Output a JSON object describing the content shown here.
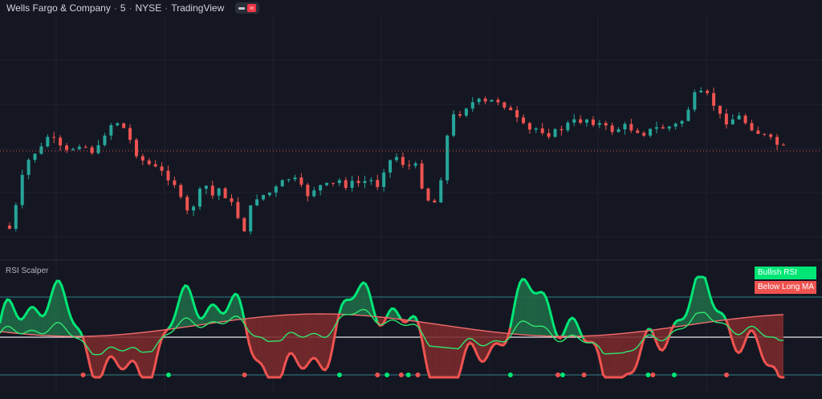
{
  "header": {
    "symbol": "Wells Fargo & Company",
    "interval": "5",
    "exchange": "NYSE",
    "source": "TradingView",
    "sep": "·"
  },
  "indicator": {
    "name": "RSI Scalper",
    "legend": [
      {
        "label": "Bullish RSI",
        "color": "#00e676"
      },
      {
        "label": "Below Long MA",
        "color": "#ef5350"
      }
    ]
  },
  "colors": {
    "background": "#141722",
    "grid": "#1e222d",
    "up": "#26a69a",
    "down": "#ef5350",
    "rsi_bull": "#00e676",
    "rsi_bear": "#ef5350",
    "fill_bull": "#1f6b48",
    "fill_bear": "#7a2a2c",
    "ma_line": "#2ee66f",
    "long_ma": "#f06b6b",
    "midline": "#e8e8e8",
    "bands": "#2f7f86"
  },
  "chart_data": [
    {
      "type": "candlestick",
      "title": "Wells Fargo & Company · 5 · NYSE",
      "reference_line": "last close (dotted)",
      "grid": true,
      "x": "bar index 0–120",
      "close_path": [
        [
          0,
          281
        ],
        [
          3,
          285
        ],
        [
          6,
          258
        ],
        [
          9,
          222
        ],
        [
          12,
          200
        ],
        [
          15,
          190
        ],
        [
          18,
          185
        ],
        [
          21,
          170
        ],
        [
          24,
          176
        ],
        [
          27,
          185
        ],
        [
          30,
          190
        ],
        [
          33,
          184
        ],
        [
          36,
          178
        ],
        [
          39,
          183
        ],
        [
          42,
          188
        ],
        [
          45,
          185
        ],
        [
          48,
          165
        ],
        [
          51,
          155
        ],
        [
          54,
          152
        ],
        [
          57,
          160
        ],
        [
          60,
          175
        ],
        [
          63,
          190
        ],
        [
          66,
          200
        ],
        [
          69,
          205
        ],
        [
          72,
          210
        ],
        [
          75,
          215
        ],
        [
          78,
          220
        ],
        [
          81,
          228
        ],
        [
          84,
          250
        ],
        [
          87,
          265
        ],
        [
          90,
          255
        ],
        [
          93,
          240
        ],
        [
          96,
          232
        ],
        [
          99,
          244
        ],
        [
          102,
          235
        ],
        [
          105,
          243
        ],
        [
          108,
          255
        ],
        [
          111,
          270
        ],
        [
          114,
          285
        ],
        [
          117,
          260
        ],
        [
          120,
          245
        ],
        [
          123,
          243
        ],
        [
          126,
          240
        ],
        [
          129,
          235
        ],
        [
          132,
          228
        ],
        [
          135,
          222
        ],
        [
          138,
          225
        ],
        [
          141,
          235
        ],
        [
          144,
          242
        ],
        [
          147,
          235
        ],
        [
          150,
          232
        ],
        [
          153,
          232
        ],
        [
          156,
          230
        ],
        [
          159,
          225
        ],
        [
          162,
          230
        ],
        [
          165,
          229
        ],
        [
          168,
          228
        ],
        [
          171,
          226
        ],
        [
          174,
          225
        ],
        [
          177,
          230
        ],
        [
          180,
          210
        ],
        [
          183,
          200
        ],
        [
          186,
          195
        ],
        [
          189,
          203
        ],
        [
          192,
          207
        ],
        [
          195,
          208
        ],
        [
          198,
          230
        ],
        [
          201,
          248
        ],
        [
          204,
          252
        ],
        [
          207,
          220
        ],
        [
          210,
          170
        ],
        [
          213,
          145
        ],
        [
          216,
          140
        ],
        [
          219,
          132
        ],
        [
          222,
          128
        ],
        [
          225,
          127
        ],
        [
          228,
          129
        ],
        [
          231,
          126
        ],
        [
          234,
          125
        ],
        [
          237,
          130
        ],
        [
          240,
          140
        ],
        [
          243,
          150
        ],
        [
          246,
          158
        ],
        [
          249,
          163
        ],
        [
          252,
          160
        ],
        [
          255,
          162
        ],
        [
          258,
          166
        ],
        [
          261,
          165
        ],
        [
          264,
          160
        ],
        [
          267,
          155
        ],
        [
          270,
          152
        ],
        [
          273,
          150
        ],
        [
          276,
          148
        ],
        [
          279,
          151
        ],
        [
          282,
          155
        ],
        [
          285,
          160
        ],
        [
          288,
          162
        ],
        [
          291,
          160
        ],
        [
          294,
          158
        ],
        [
          297,
          160
        ],
        [
          300,
          162
        ],
        [
          303,
          165
        ],
        [
          306,
          163
        ],
        [
          309,
          160
        ],
        [
          312,
          159
        ],
        [
          315,
          158
        ],
        [
          318,
          156
        ],
        [
          321,
          150
        ],
        [
          324,
          135
        ],
        [
          327,
          120
        ],
        [
          330,
          118
        ],
        [
          333,
          120
        ],
        [
          336,
          130
        ],
        [
          339,
          145
        ],
        [
          342,
          150
        ],
        [
          345,
          148
        ],
        [
          348,
          146
        ],
        [
          351,
          152
        ],
        [
          354,
          158
        ],
        [
          357,
          165
        ],
        [
          360,
          170
        ],
        [
          363,
          175
        ],
        [
          366,
          180
        ],
        [
          369,
          185
        ]
      ]
    },
    {
      "type": "line",
      "title": "RSI Scalper",
      "hlines": [
        "upper band",
        "mid",
        "lower band"
      ]
    }
  ]
}
